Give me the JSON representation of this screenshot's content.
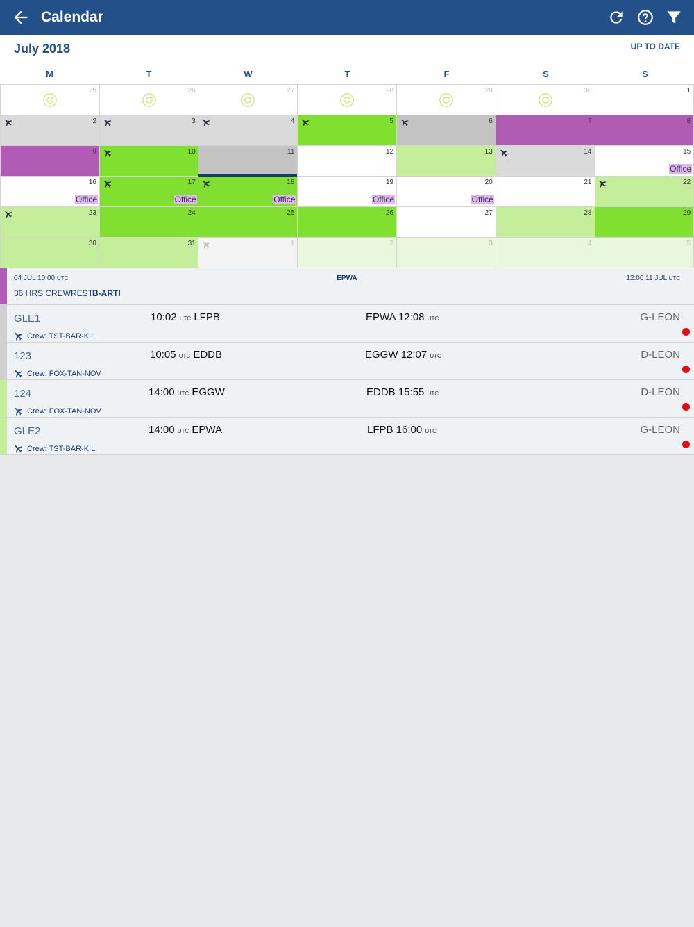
{
  "appbar": {
    "title": "Calendar",
    "back_icon": "arrow-left-icon",
    "refresh_icon": "refresh-icon",
    "help_icon": "help-circle-icon",
    "filter_icon": "filter-icon",
    "color": "#235088"
  },
  "calendar": {
    "month": "July 2018",
    "status": "UP TO DATE",
    "weekdays": [
      "M",
      "T",
      "W",
      "T",
      "F",
      "S",
      "S"
    ],
    "office_label": "Office",
    "days": [
      {
        "n": "25",
        "bg": "",
        "sync": true,
        "out": true
      },
      {
        "n": "26",
        "bg": "",
        "sync": true,
        "out": true
      },
      {
        "n": "27",
        "bg": "",
        "sync": true,
        "out": true
      },
      {
        "n": "28",
        "bg": "",
        "sync": true,
        "out": true
      },
      {
        "n": "29",
        "bg": "",
        "sync": true,
        "out": true
      },
      {
        "n": "30",
        "bg": "",
        "sync": true,
        "out": true
      },
      {
        "n": "1",
        "bg": ""
      },
      {
        "n": "2",
        "bg": "gray",
        "plane": true
      },
      {
        "n": "3",
        "bg": "gray",
        "plane": true
      },
      {
        "n": "4",
        "bg": "gray",
        "plane": true
      },
      {
        "n": "5",
        "bg": "green",
        "plane": true
      },
      {
        "n": "6",
        "bg": "gray2",
        "plane": true
      },
      {
        "n": "7",
        "bg": "purple"
      },
      {
        "n": "8",
        "bg": "purple"
      },
      {
        "n": "9",
        "bg": "purple"
      },
      {
        "n": "10",
        "bg": "green",
        "plane": true
      },
      {
        "n": "11",
        "bg": "gray2",
        "today": true
      },
      {
        "n": "12",
        "bg": ""
      },
      {
        "n": "13",
        "bg": "lgreen"
      },
      {
        "n": "14",
        "bg": "gray",
        "plane": true
      },
      {
        "n": "15",
        "bg": "",
        "office": true
      },
      {
        "n": "16",
        "bg": "",
        "office": true
      },
      {
        "n": "17",
        "bg": "green",
        "plane": true,
        "office": true
      },
      {
        "n": "18",
        "bg": "green",
        "plane": true,
        "office": true
      },
      {
        "n": "19",
        "bg": "",
        "office": true
      },
      {
        "n": "20",
        "bg": "",
        "office": true
      },
      {
        "n": "21",
        "bg": ""
      },
      {
        "n": "22",
        "bg": "lgreen",
        "plane": true
      },
      {
        "n": "23",
        "bg": "lgreen",
        "plane": true
      },
      {
        "n": "24",
        "bg": "green"
      },
      {
        "n": "25",
        "bg": "green"
      },
      {
        "n": "26",
        "bg": "green"
      },
      {
        "n": "27",
        "bg": ""
      },
      {
        "n": "28",
        "bg": "lgreen"
      },
      {
        "n": "29",
        "bg": "green"
      },
      {
        "n": "30",
        "bg": "lgreen"
      },
      {
        "n": "31",
        "bg": "lgreen"
      },
      {
        "n": "1",
        "bg": "offw",
        "plane": true,
        "planeLight": true,
        "out": true
      },
      {
        "n": "2",
        "bg": "pale",
        "out": true
      },
      {
        "n": "3",
        "bg": "pale",
        "out": true
      },
      {
        "n": "4",
        "bg": "pale",
        "out": true
      },
      {
        "n": "5",
        "bg": "pale",
        "out": true
      }
    ],
    "colors": {
      "gray": "#dadada",
      "gray2": "#c3c3c3",
      "green": "#80df2f",
      "lgreen": "#c5ee9a",
      "pale": "#e9f7dd",
      "purple": "#b05bb4",
      "sync_icon": "#c9e87d"
    }
  },
  "rest": {
    "from_date": "04 JUL 10:00",
    "from_unit": "UTC",
    "location": "EPWA",
    "to_time": "12:00 11 JUL",
    "to_unit": "UTC",
    "label": "36 HRS CREWREST",
    "registration": "B-ARTI",
    "bar_color": "#b05bb4"
  },
  "flights": [
    {
      "no": "GLE1",
      "dep_time": "10:02",
      "dep_unit": "UTC",
      "dep_ap": "LFPB",
      "arr_ap": "EPWA",
      "arr_time": "12:08",
      "arr_unit": "UTC",
      "tail": "G-LEON",
      "crew": "Crew: TST-BAR-KIL",
      "bar": "#d0d0d0"
    },
    {
      "no": "123",
      "dep_time": "10:05",
      "dep_unit": "UTC",
      "dep_ap": "EDDB",
      "arr_ap": "EGGW",
      "arr_time": "12:07",
      "arr_unit": "UTC",
      "tail": "D-LEON",
      "crew": "Crew: FOX-TAN-NOV",
      "bar": "#d0d0d0"
    },
    {
      "no": "124",
      "dep_time": "14:00",
      "dep_unit": "UTC",
      "dep_ap": "EGGW",
      "arr_ap": "EDDB",
      "arr_time": "15:55",
      "arr_unit": "UTC",
      "tail": "D-LEON",
      "crew": "Crew: FOX-TAN-NOV",
      "bar": "#c5ee9a"
    },
    {
      "no": "GLE2",
      "dep_time": "14:00",
      "dep_unit": "UTC",
      "dep_ap": "EPWA",
      "arr_ap": "LFPB",
      "arr_time": "16:00",
      "arr_unit": "UTC",
      "tail": "G-LEON",
      "crew": "Crew: TST-BAR-KIL",
      "bar": "#c5ee9a"
    }
  ]
}
